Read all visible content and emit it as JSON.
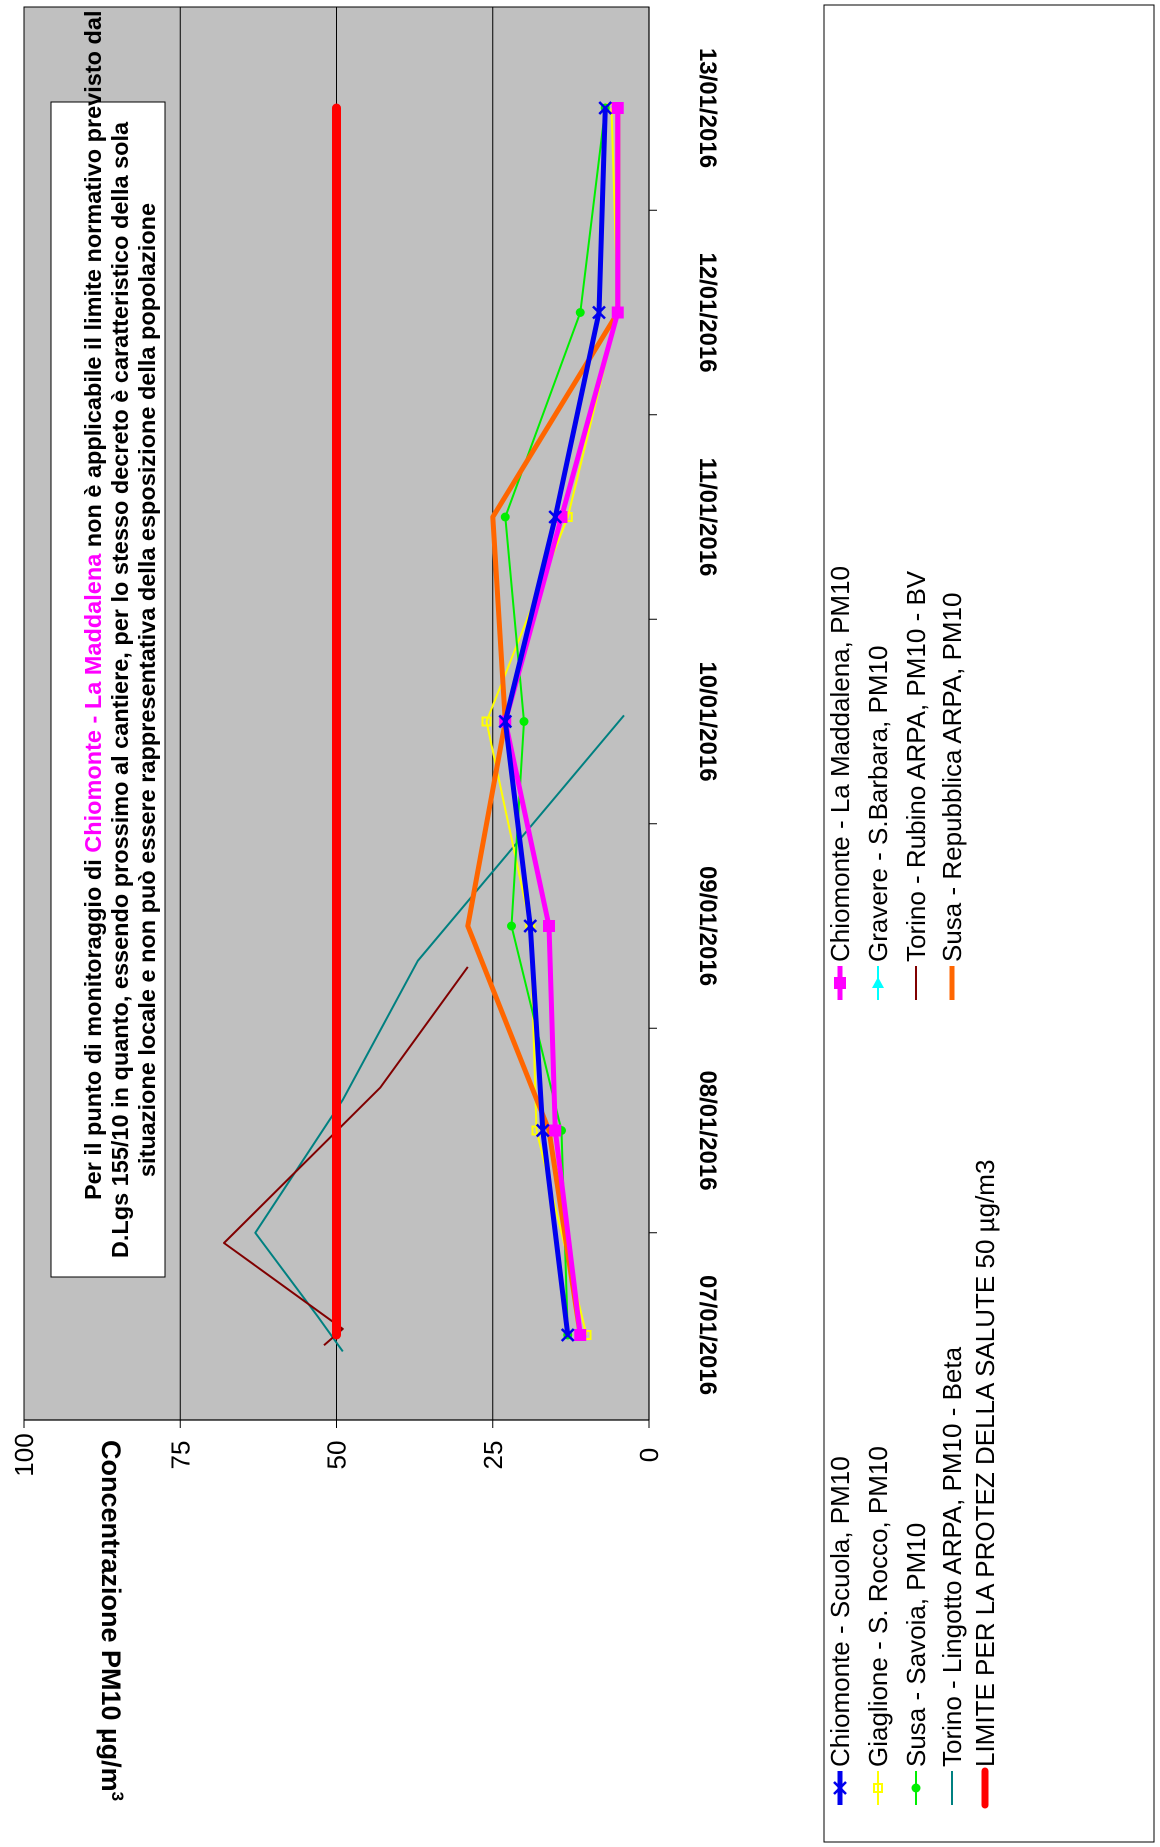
{
  "chart_data": {
    "type": "line",
    "title": "",
    "xlabel": "",
    "ylabel": "Concentrazione PM10 µg/m³",
    "ylabel_parts": [
      "Concentrazione PM10 µg/m",
      "3"
    ],
    "ylim": [
      0,
      100
    ],
    "y_ticks": [
      "0",
      "25",
      "50",
      "75",
      "100"
    ],
    "y_tick_values": [
      0,
      25,
      50,
      75,
      100
    ],
    "grid": true,
    "grid_values": [
      25,
      50,
      75
    ],
    "categories": [
      "07/01/2016",
      "08/01/2016",
      "09/01/2016",
      "10/01/2016",
      "11/01/2016",
      "12/01/2016",
      "13/01/2016"
    ],
    "legend_placement": "bottom",
    "series": [
      {
        "name": "Chiomonte - Scuola, PM10",
        "color": "#0000ee",
        "width": 5,
        "marker": "x",
        "values": [
          13,
          17,
          19,
          23,
          15,
          8,
          7
        ]
      },
      {
        "name": "Chiomonte - La Maddalena, PM10",
        "color": "#ff00ff",
        "width": 5,
        "marker": "square",
        "values": [
          11,
          15,
          16,
          23,
          14,
          5,
          5
        ]
      },
      {
        "name": "Giaglione - S. Rocco, PM10",
        "color": "#ffff00",
        "width": 2,
        "marker": "open-square",
        "values": [
          10,
          18,
          19,
          26,
          13,
          5,
          6
        ]
      },
      {
        "name": "Gravere - S.Barbara, PM10",
        "color": "#00ffff",
        "width": 2,
        "marker": "triangle",
        "values": [
          null,
          null,
          null,
          null,
          null,
          null,
          null
        ]
      },
      {
        "name": "Susa - Savoia, PM10",
        "color": "#00ee00",
        "width": 2,
        "marker": "dot",
        "values": [
          13,
          14,
          22,
          20,
          23,
          11,
          7
        ]
      },
      {
        "name": "Torino - Rubino ARPA, PM10 - BV",
        "color": "#800000",
        "width": 2,
        "marker": "none",
        "x": [
          -0.05,
          0.03,
          0.45,
          1.21,
          1.8
        ],
        "values": [
          52,
          49,
          68,
          43,
          29
        ]
      },
      {
        "name": "Torino - Lingotto ARPA, PM10 - Beta",
        "color": "#008080",
        "width": 2,
        "marker": "none",
        "x": [
          -0.08,
          0.09,
          0.5,
          1.15,
          1.83,
          3.03
        ],
        "values": [
          49,
          53,
          63,
          49,
          37,
          4
        ]
      },
      {
        "name": "Susa - Repubblica ARPA, PM10",
        "color": "#ff6600",
        "width": 5,
        "marker": "none",
        "values": [
          11,
          16,
          29,
          23,
          25,
          5,
          5
        ]
      },
      {
        "name": "LIMITE PER LA PROTEZ DELLA SALUTE 50 µg/m3",
        "color": "#ff0000",
        "width": 9,
        "marker": "none",
        "values": [
          50,
          50,
          50,
          50,
          50,
          50,
          50
        ]
      }
    ],
    "annotation": {
      "segments": [
        {
          "text": "Per il punto di monitoraggio di ",
          "color": "#000000"
        },
        {
          "text": "Chiomonte - La Maddalena",
          "color": "#ff00ff"
        },
        {
          "text": " non è applicabile il limite normativo previsto dal",
          "color": "#000000"
        }
      ],
      "lines": [
        "D.Lgs 155/10 in quanto, essendo prossimo al cantiere, per lo stesso decreto è caratteristico della sola",
        "situazione locale e non può essere rappresentativa della esposizione della popolazione"
      ]
    }
  }
}
